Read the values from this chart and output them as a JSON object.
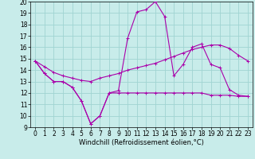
{
  "xlabel": "Windchill (Refroidissement éolien,°C)",
  "background_color": "#c8ecea",
  "grid_color": "#a0d4d2",
  "line_color": "#aa00aa",
  "xlim": [
    -0.5,
    23.5
  ],
  "ylim": [
    9,
    20
  ],
  "xticks": [
    0,
    1,
    2,
    3,
    4,
    5,
    6,
    7,
    8,
    9,
    10,
    11,
    12,
    13,
    14,
    15,
    16,
    17,
    18,
    19,
    20,
    21,
    22,
    23
  ],
  "yticks": [
    9,
    10,
    11,
    12,
    13,
    14,
    15,
    16,
    17,
    18,
    19,
    20
  ],
  "series1_x": [
    0,
    1,
    2,
    3,
    4,
    5,
    6,
    7,
    8,
    9,
    10,
    11,
    12,
    13,
    14,
    15,
    16,
    17,
    18,
    19,
    20,
    21,
    22,
    23
  ],
  "series1_y": [
    14.8,
    13.7,
    13.0,
    13.0,
    12.5,
    11.3,
    9.3,
    10.0,
    12.0,
    12.0,
    12.0,
    12.0,
    12.0,
    12.0,
    12.0,
    12.0,
    12.0,
    12.0,
    12.0,
    11.8,
    11.8,
    11.8,
    11.7,
    11.7
  ],
  "series2_x": [
    0,
    1,
    2,
    3,
    4,
    5,
    6,
    7,
    8,
    9,
    10,
    11,
    12,
    13,
    14,
    15,
    16,
    17,
    18,
    19,
    20,
    21,
    22,
    23
  ],
  "series2_y": [
    14.8,
    14.3,
    13.8,
    13.5,
    13.3,
    13.1,
    13.0,
    13.3,
    13.5,
    13.7,
    14.0,
    14.2,
    14.4,
    14.6,
    14.9,
    15.2,
    15.5,
    15.8,
    16.0,
    16.2,
    16.2,
    15.9,
    15.3,
    14.8
  ],
  "series3_x": [
    0,
    1,
    2,
    3,
    4,
    5,
    6,
    7,
    8,
    9,
    10,
    11,
    12,
    13,
    14,
    15,
    16,
    17,
    18,
    19,
    20,
    21,
    22,
    23
  ],
  "series3_y": [
    14.8,
    13.7,
    13.0,
    13.0,
    12.5,
    11.3,
    9.3,
    10.0,
    12.0,
    12.2,
    16.8,
    19.1,
    19.3,
    20.0,
    18.7,
    13.5,
    14.5,
    16.0,
    16.3,
    14.5,
    14.2,
    12.3,
    11.8,
    11.7
  ],
  "tick_fontsize": 5.5,
  "xlabel_fontsize": 6.0,
  "linewidth": 0.8,
  "markersize": 2.5
}
